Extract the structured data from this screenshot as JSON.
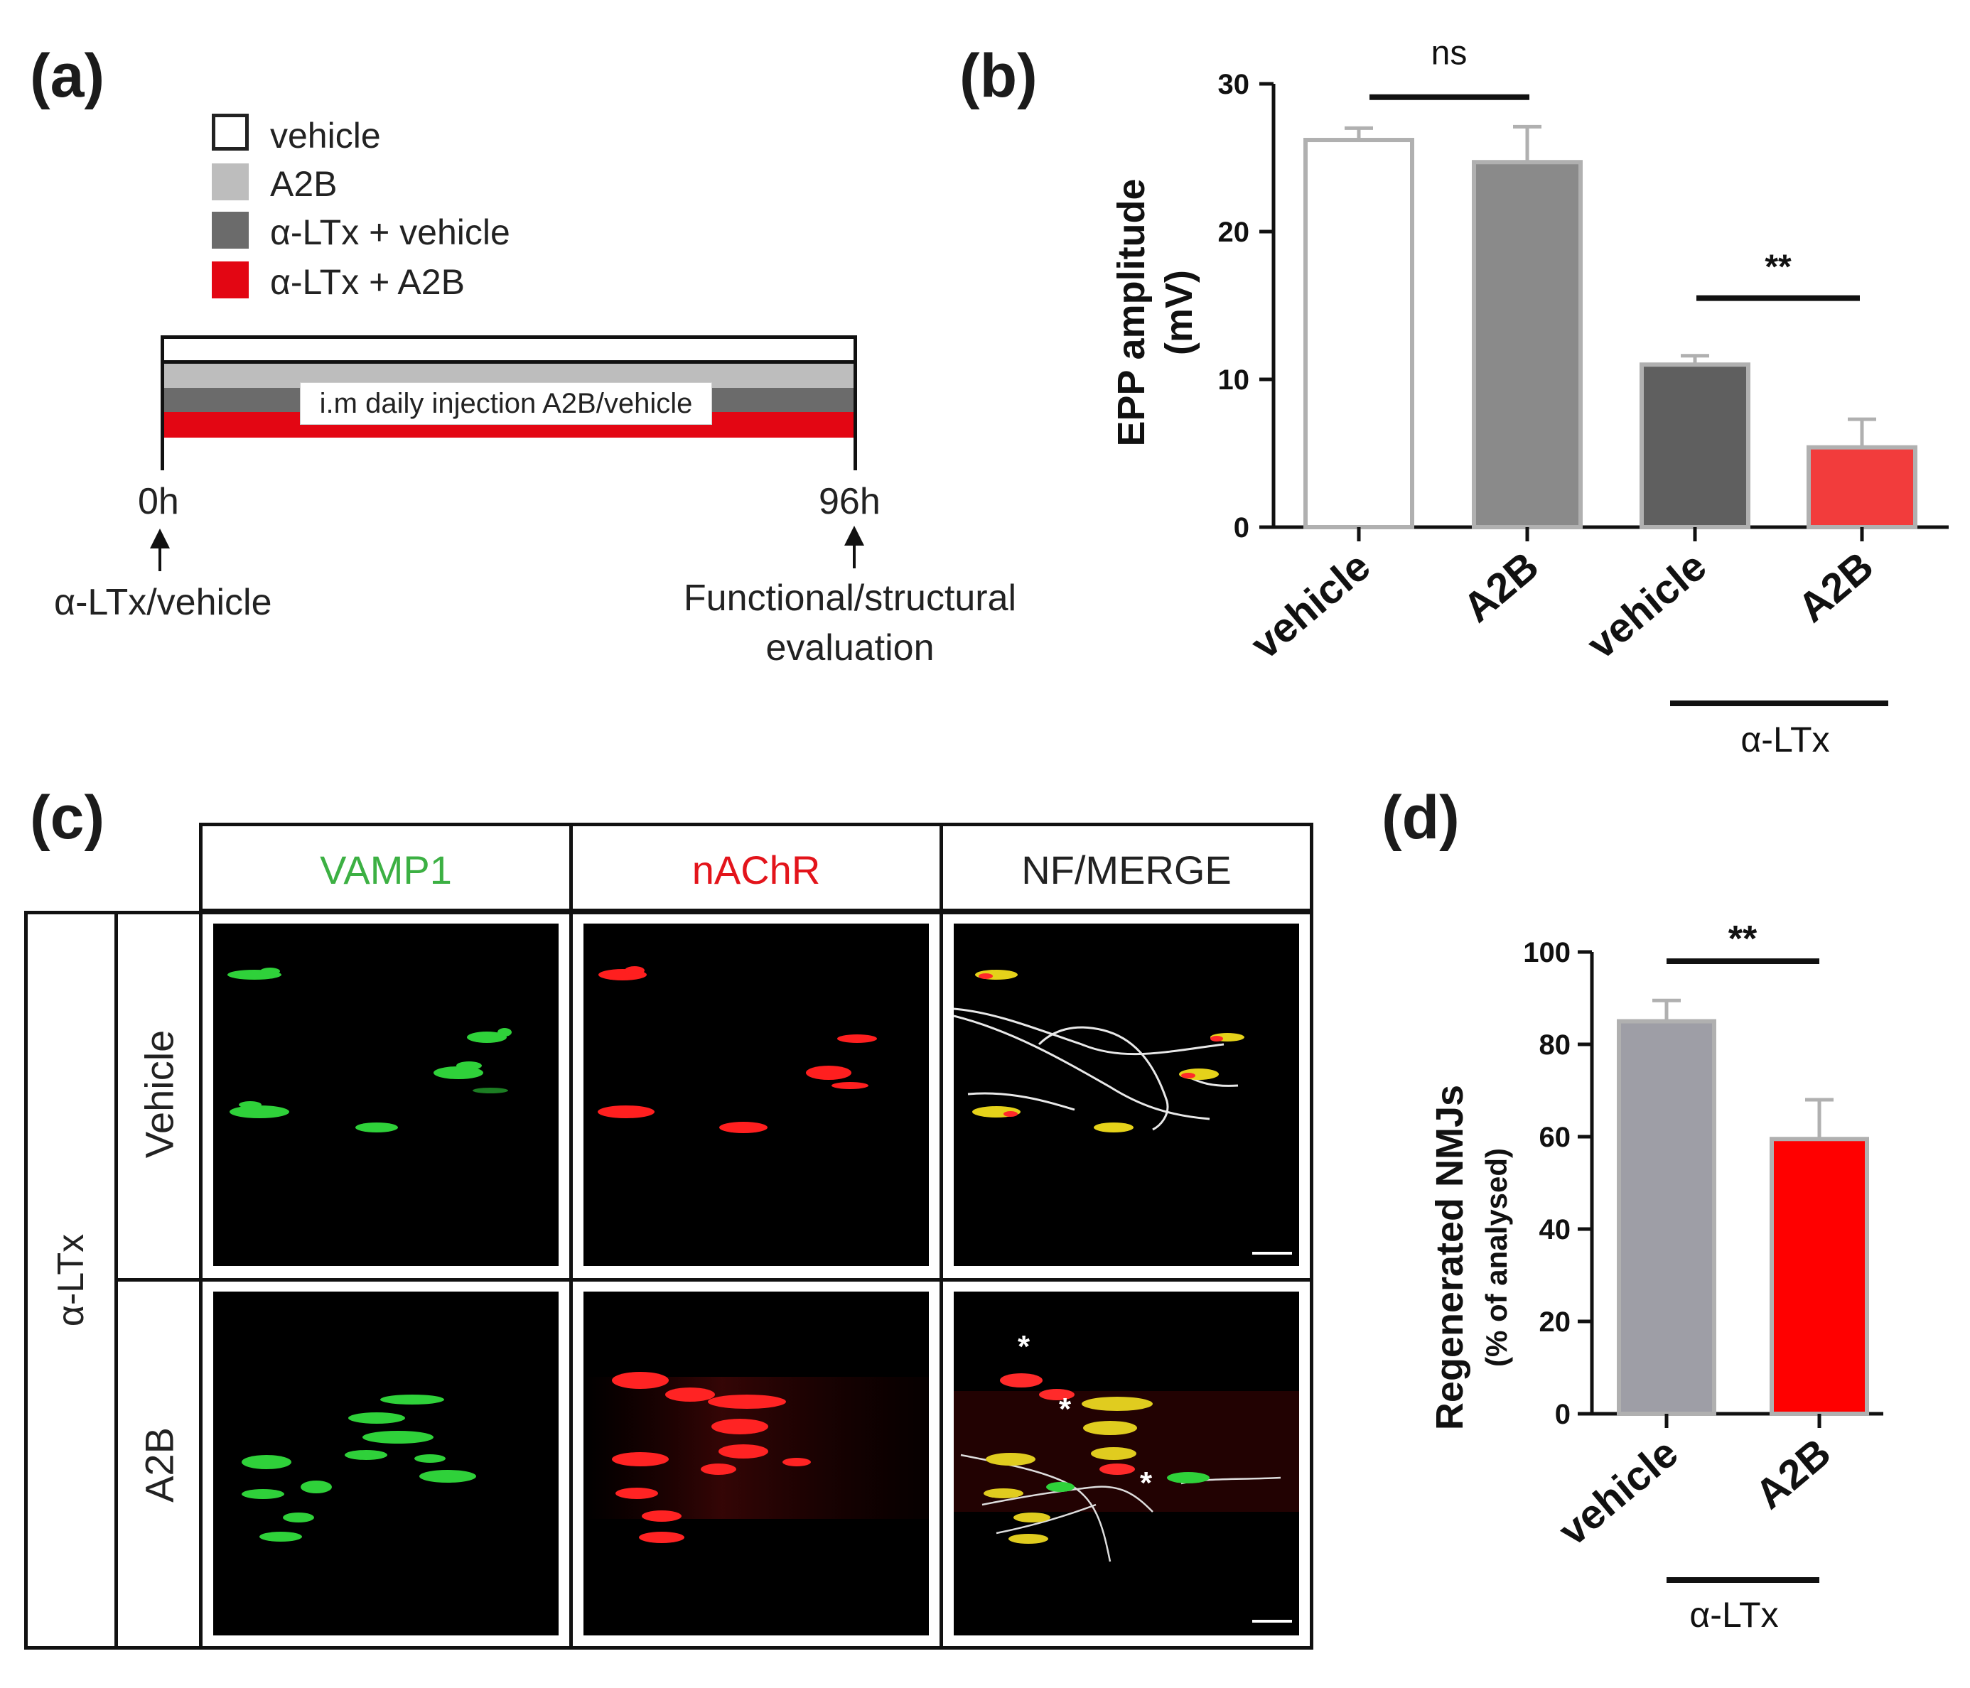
{
  "panel_a": {
    "letter": "(a)",
    "legend": [
      {
        "label": "vehicle",
        "color": "#ffffff",
        "border": "#222222"
      },
      {
        "label": "A2B",
        "color": "#bdbdbd",
        "border": "#bdbdbd"
      },
      {
        "label": "α-LTx + vehicle",
        "color": "#6b6b6b",
        "border": "#6b6b6b"
      },
      {
        "label": "α-LTx + A2B",
        "color": "#e30613",
        "border": "#e30613"
      }
    ],
    "timeline_text": "i.m daily injection A2B/vehicle",
    "start_label": "0h",
    "end_label": "96h",
    "start_event": "α-LTx/vehicle",
    "end_event_line1": "Functional/structural",
    "end_event_line2": "evaluation"
  },
  "panel_b": {
    "letter": "(b)",
    "chart_data": {
      "type": "bar",
      "ylabel_line1": "EPP amplitude",
      "ylabel_line2": "(mV)",
      "ylim": [
        0,
        30
      ],
      "yticks": [
        "0",
        "10",
        "20",
        "30"
      ],
      "categories": [
        "vehicle",
        "A2B",
        "vehicle",
        "A2B"
      ],
      "values": [
        26.2,
        24.7,
        11.0,
        5.4
      ],
      "errors": [
        0.8,
        2.4,
        0.6,
        1.9
      ],
      "fills": [
        "#ffffff",
        "#8a8a8a",
        "#5f5f5f",
        "#f23c3c"
      ],
      "strokes": [
        "#b0b0b0",
        "#b0b0b0",
        "#b0b0b0",
        "#b0b0b0"
      ],
      "sig1": "ns",
      "sig2": "**",
      "group_label": "α-LTx"
    }
  },
  "panel_c": {
    "letter": "(c)",
    "col_headers": [
      {
        "label": "VAMP1",
        "color": "#3cb043"
      },
      {
        "label": "nAChR",
        "color": "#e3141b"
      },
      {
        "label": "NF/MERGE",
        "color": "#222222"
      }
    ],
    "row_headers": [
      "Vehicle",
      "A2B"
    ],
    "group_label": "α-LTx",
    "asterisk": "*"
  },
  "panel_d": {
    "letter": "(d)",
    "chart_data": {
      "type": "bar",
      "ylabel_line1": "Regenerated NMJs",
      "ylabel_line2": "(% of analysed)",
      "ylim": [
        0,
        100
      ],
      "yticks": [
        "0",
        "20",
        "40",
        "60",
        "80",
        "100"
      ],
      "categories": [
        "vehicle",
        "A2B"
      ],
      "values": [
        85,
        59.5
      ],
      "errors": [
        4.5,
        8.5
      ],
      "fills": [
        "#9e9ea6",
        "#ff0000"
      ],
      "strokes": [
        "#b0b0b0",
        "#b0b0b0"
      ],
      "sig": "**",
      "group_label": "α-LTx"
    }
  }
}
